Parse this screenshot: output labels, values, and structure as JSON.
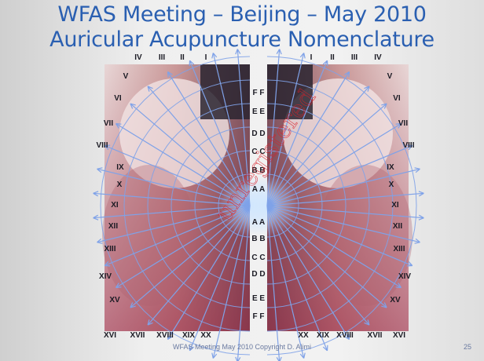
{
  "slide": {
    "title_line1": "WFAS Meeting – Beijing – May 2010",
    "title_line2": "Auricular Acupuncture Nomenclature",
    "footer": "WFAS Meeting May 2010 Copyright D. Alimi",
    "page_number": "25",
    "watermark": "unregistered"
  },
  "colors": {
    "title": "#2a5fb1",
    "grid_lines": "#7fa2e8",
    "watermark": "#dc1e28"
  },
  "sectors": [
    "I",
    "II",
    "III",
    "IV",
    "V",
    "VI",
    "VII",
    "VIII",
    "IX",
    "X",
    "XI",
    "XII",
    "XIII",
    "XIV",
    "XV",
    "XVI",
    "XVII",
    "XVIII",
    "XIX",
    "XX"
  ],
  "rings_top": [
    "F F",
    "E E",
    "D D",
    "C C",
    "B B",
    "A A"
  ],
  "rings_bottom": [
    "A A",
    "B B",
    "C C",
    "D D",
    "E E",
    "F F"
  ]
}
